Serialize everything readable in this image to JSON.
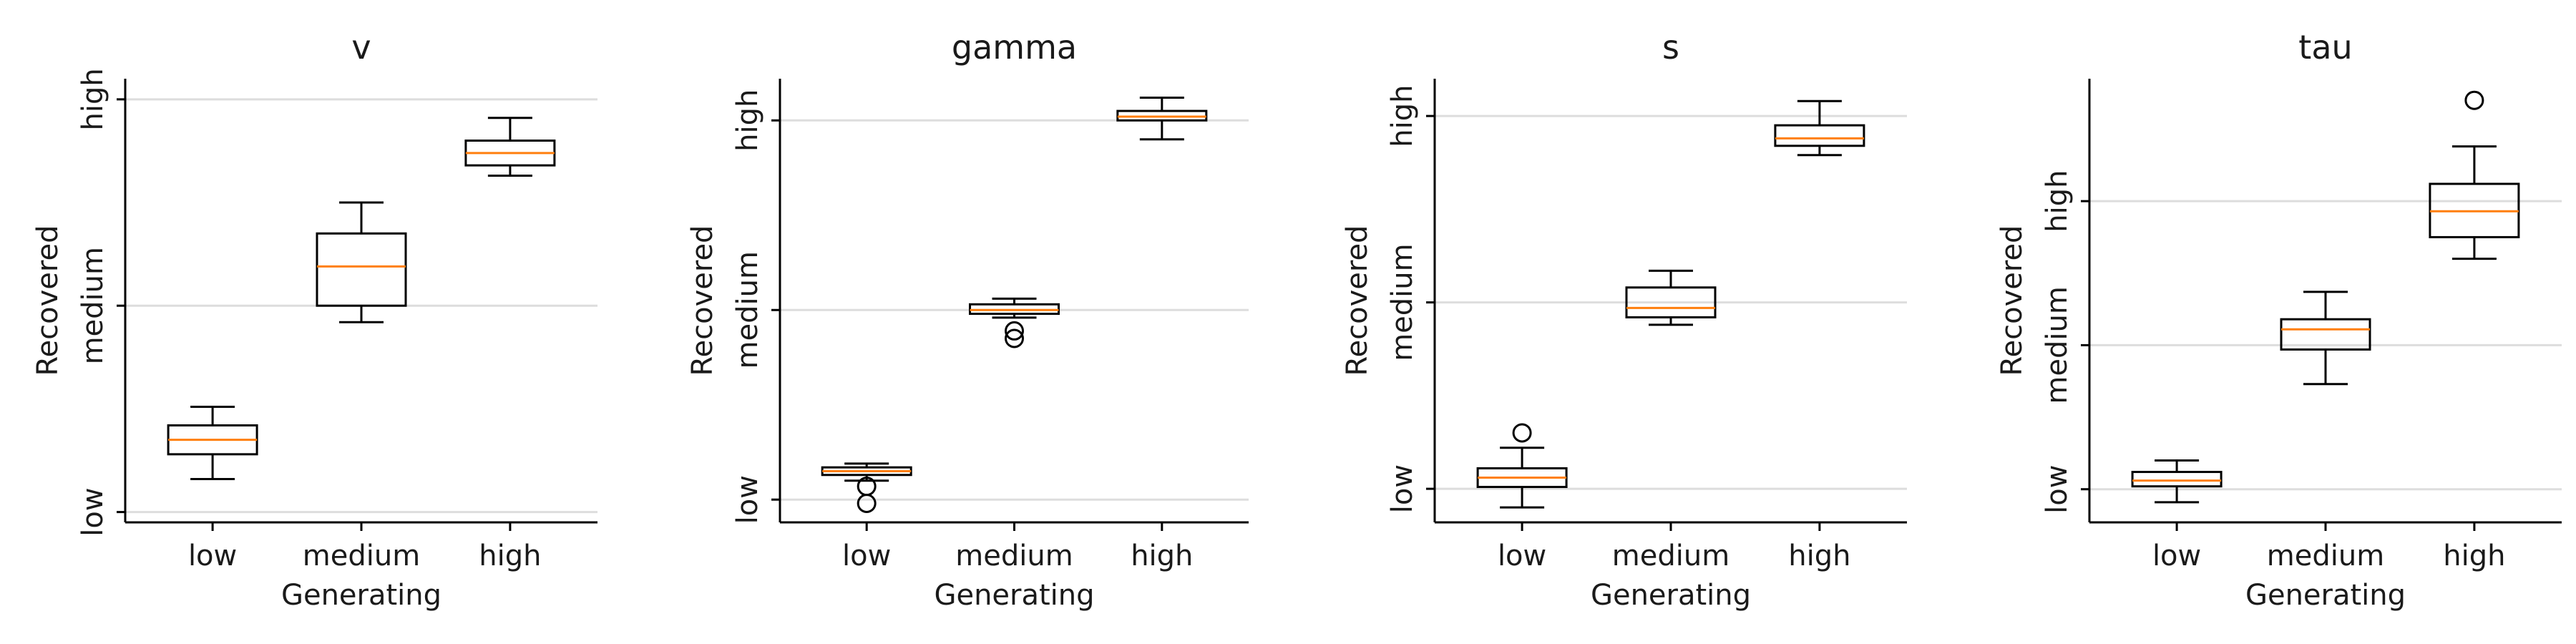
{
  "chart_data": [
    {
      "type": "box",
      "title": "v",
      "xlabel": "Generating",
      "ylabel": "Recovered",
      "categories": [
        "low",
        "medium",
        "high"
      ],
      "yticks": [
        "low",
        "medium",
        "high"
      ],
      "ylim": [
        -0.05,
        2.1
      ],
      "grid": "horizontal",
      "boxes": [
        {
          "whislo": 0.16,
          "q1": 0.28,
          "med": 0.35,
          "q3": 0.42,
          "whishi": 0.51,
          "fliers": []
        },
        {
          "whislo": 0.92,
          "q1": 1.0,
          "med": 1.19,
          "q3": 1.35,
          "whishi": 1.5,
          "fliers": []
        },
        {
          "whislo": 1.63,
          "q1": 1.68,
          "med": 1.74,
          "q3": 1.8,
          "whishi": 1.91,
          "fliers": []
        }
      ]
    },
    {
      "type": "box",
      "title": "gamma",
      "xlabel": "Generating",
      "ylabel": "Recovered",
      "categories": [
        "low",
        "medium",
        "high"
      ],
      "yticks": [
        "low",
        "medium",
        "high"
      ],
      "ylim": [
        -0.12,
        2.22
      ],
      "grid": "horizontal",
      "boxes": [
        {
          "whislo": 0.1,
          "q1": 0.13,
          "med": 0.15,
          "q3": 0.17,
          "whishi": 0.19,
          "fliers": [
            0.07,
            -0.02
          ]
        },
        {
          "whislo": 0.96,
          "q1": 0.98,
          "med": 1.0,
          "q3": 1.03,
          "whishi": 1.06,
          "fliers": [
            0.89,
            0.85
          ]
        },
        {
          "whislo": 1.9,
          "q1": 2.0,
          "med": 2.02,
          "q3": 2.05,
          "whishi": 2.12,
          "fliers": []
        }
      ]
    },
    {
      "type": "box",
      "title": "s",
      "xlabel": "Generating",
      "ylabel": "Recovered",
      "categories": [
        "low",
        "medium",
        "high"
      ],
      "yticks": [
        "low",
        "medium",
        "high"
      ],
      "ylim": [
        -0.18,
        2.2
      ],
      "grid": "horizontal",
      "boxes": [
        {
          "whislo": -0.1,
          "q1": 0.01,
          "med": 0.06,
          "q3": 0.11,
          "whishi": 0.22,
          "fliers": [
            0.3
          ]
        },
        {
          "whislo": 0.88,
          "q1": 0.92,
          "med": 0.97,
          "q3": 1.08,
          "whishi": 1.17,
          "fliers": []
        },
        {
          "whislo": 1.79,
          "q1": 1.84,
          "med": 1.88,
          "q3": 1.95,
          "whishi": 2.08,
          "fliers": []
        }
      ]
    },
    {
      "type": "box",
      "title": "tau",
      "xlabel": "Generating",
      "ylabel": "Recovered",
      "categories": [
        "low",
        "medium",
        "high"
      ],
      "yticks": [
        "low",
        "medium",
        "high"
      ],
      "ylim": [
        -0.23,
        2.85
      ],
      "grid": "horizontal",
      "boxes": [
        {
          "whislo": -0.09,
          "q1": 0.02,
          "med": 0.06,
          "q3": 0.12,
          "whishi": 0.2,
          "fliers": []
        },
        {
          "whislo": 0.73,
          "q1": 0.97,
          "med": 1.11,
          "q3": 1.18,
          "whishi": 1.37,
          "fliers": []
        },
        {
          "whislo": 1.6,
          "q1": 1.75,
          "med": 1.93,
          "q3": 2.12,
          "whishi": 2.38,
          "fliers": [
            2.7
          ]
        }
      ]
    }
  ],
  "style": {
    "box_color": "#000000",
    "median_color": "#ff7f0e",
    "grid_color": "#dddddd",
    "axis_color": "#000000",
    "background": "#ffffff"
  }
}
